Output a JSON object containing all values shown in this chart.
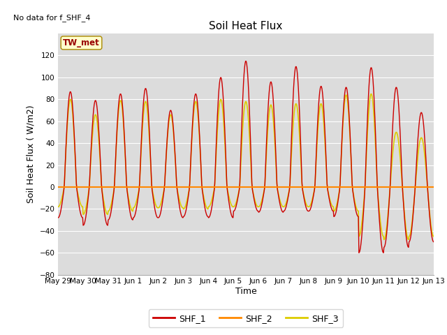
{
  "title": "Soil Heat Flux",
  "ylabel": "Soil Heat Flux ( W/m2)",
  "xlabel": "Time",
  "note": "No data for f_SHF_4",
  "annotation": "TW_met",
  "ylim": [
    -80,
    140
  ],
  "yticks": [
    -80,
    -60,
    -40,
    -20,
    0,
    20,
    40,
    60,
    80,
    100,
    120
  ],
  "background_color": "#dcdcdc",
  "grid_color": "white",
  "line1_color": "#cc0000",
  "line2_color": "#ff8800",
  "line3_color": "#ddcc00",
  "legend_labels": [
    "SHF_1",
    "SHF_2",
    "SHF_3"
  ],
  "xtick_labels": [
    "May 29",
    "May 30",
    "May 31",
    "Jun 1",
    "Jun 2",
    "Jun 3",
    "Jun 4",
    "Jun 5",
    "Jun 6",
    "Jun 7",
    "Jun 8",
    "Jun 9",
    "Jun 10",
    "Jun 11",
    "Jun 12",
    "Jun 13"
  ],
  "num_days": 15,
  "samples_per_day": 48,
  "peaks_shf1": [
    87,
    79,
    85,
    90,
    70,
    85,
    100,
    115,
    96,
    110,
    92,
    91,
    109,
    91,
    68
  ],
  "troughs_shf1": [
    -28,
    -35,
    -30,
    -28,
    -28,
    -27,
    -28,
    -22,
    -23,
    -22,
    -22,
    -27,
    -60,
    -55,
    -50
  ],
  "peaks_shf3": [
    80,
    66,
    79,
    78,
    66,
    78,
    80,
    78,
    75,
    76,
    76,
    84,
    85,
    50,
    45
  ],
  "troughs_shf3": [
    -18,
    -25,
    -22,
    -19,
    -19,
    -20,
    -18,
    -18,
    -18,
    -18,
    -18,
    -22,
    -45,
    -48,
    -45
  ]
}
